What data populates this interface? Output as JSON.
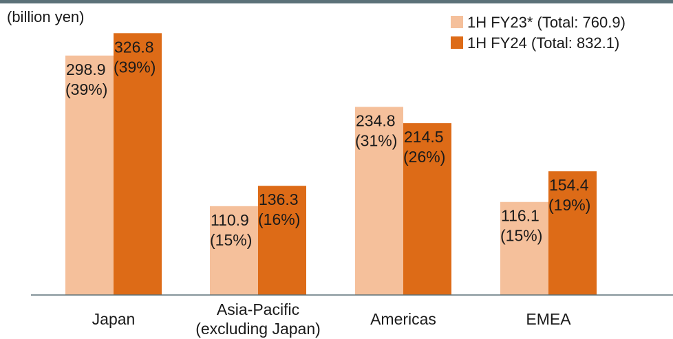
{
  "chart_data": {
    "type": "bar",
    "unit_label": "(billion yen)",
    "categories": [
      [
        "Japan"
      ],
      [
        "Asia-Pacific",
        "(excluding Japan)"
      ],
      [
        "Americas"
      ],
      [
        "EMEA"
      ]
    ],
    "series": [
      {
        "name": "1H FY23*",
        "legend_label": "1H FY23*  (Total: 760.9)",
        "color": "#f5c09b",
        "values": [
          298.9,
          110.9,
          234.8,
          116.1
        ],
        "shares": [
          "(39%)",
          "(15%)",
          "(31%)",
          "(15%)"
        ]
      },
      {
        "name": "1H FY24",
        "legend_label": "1H FY24  (Total: 832.1)",
        "color": "#dd6b17",
        "values": [
          326.8,
          136.3,
          214.5,
          154.4
        ],
        "shares": [
          "(39%)",
          "(16%)",
          "(26%)",
          "(19%)"
        ]
      }
    ],
    "ylim": [
      0,
      330
    ],
    "grid": false,
    "legend_position": "top-right"
  }
}
